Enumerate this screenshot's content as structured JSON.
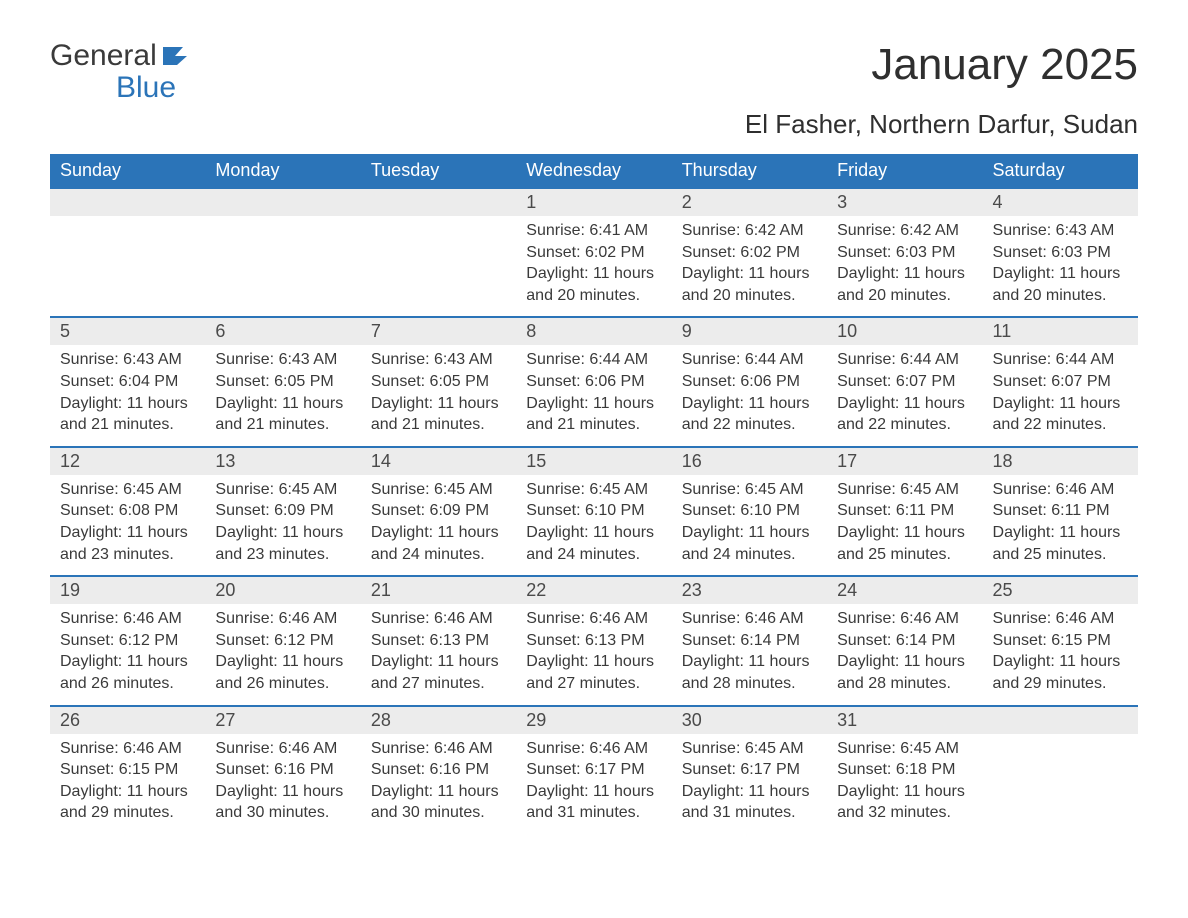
{
  "logo": {
    "word1": "General",
    "word2": "Blue"
  },
  "title": "January 2025",
  "location": "El Fasher, Northern Darfur, Sudan",
  "colors": {
    "header_bg": "#2b74b8",
    "header_text": "#ffffff",
    "daynum_bg": "#ececec",
    "text": "#3a3a3a",
    "rule": "#2b74b8",
    "logo_blue": "#2b74b8"
  },
  "typography": {
    "title_fontsize": 44,
    "location_fontsize": 26,
    "header_fontsize": 18,
    "body_fontsize": 16,
    "logo_fontsize": 30
  },
  "weekdays": [
    "Sunday",
    "Monday",
    "Tuesday",
    "Wednesday",
    "Thursday",
    "Friday",
    "Saturday"
  ],
  "labels": {
    "sunrise": "Sunrise:",
    "sunset": "Sunset:",
    "daylight": "Daylight:"
  },
  "weeks": [
    [
      null,
      null,
      null,
      {
        "n": "1",
        "sunrise": "6:41 AM",
        "sunset": "6:02 PM",
        "daylight": "11 hours and 20 minutes."
      },
      {
        "n": "2",
        "sunrise": "6:42 AM",
        "sunset": "6:02 PM",
        "daylight": "11 hours and 20 minutes."
      },
      {
        "n": "3",
        "sunrise": "6:42 AM",
        "sunset": "6:03 PM",
        "daylight": "11 hours and 20 minutes."
      },
      {
        "n": "4",
        "sunrise": "6:43 AM",
        "sunset": "6:03 PM",
        "daylight": "11 hours and 20 minutes."
      }
    ],
    [
      {
        "n": "5",
        "sunrise": "6:43 AM",
        "sunset": "6:04 PM",
        "daylight": "11 hours and 21 minutes."
      },
      {
        "n": "6",
        "sunrise": "6:43 AM",
        "sunset": "6:05 PM",
        "daylight": "11 hours and 21 minutes."
      },
      {
        "n": "7",
        "sunrise": "6:43 AM",
        "sunset": "6:05 PM",
        "daylight": "11 hours and 21 minutes."
      },
      {
        "n": "8",
        "sunrise": "6:44 AM",
        "sunset": "6:06 PM",
        "daylight": "11 hours and 21 minutes."
      },
      {
        "n": "9",
        "sunrise": "6:44 AM",
        "sunset": "6:06 PM",
        "daylight": "11 hours and 22 minutes."
      },
      {
        "n": "10",
        "sunrise": "6:44 AM",
        "sunset": "6:07 PM",
        "daylight": "11 hours and 22 minutes."
      },
      {
        "n": "11",
        "sunrise": "6:44 AM",
        "sunset": "6:07 PM",
        "daylight": "11 hours and 22 minutes."
      }
    ],
    [
      {
        "n": "12",
        "sunrise": "6:45 AM",
        "sunset": "6:08 PM",
        "daylight": "11 hours and 23 minutes."
      },
      {
        "n": "13",
        "sunrise": "6:45 AM",
        "sunset": "6:09 PM",
        "daylight": "11 hours and 23 minutes."
      },
      {
        "n": "14",
        "sunrise": "6:45 AM",
        "sunset": "6:09 PM",
        "daylight": "11 hours and 24 minutes."
      },
      {
        "n": "15",
        "sunrise": "6:45 AM",
        "sunset": "6:10 PM",
        "daylight": "11 hours and 24 minutes."
      },
      {
        "n": "16",
        "sunrise": "6:45 AM",
        "sunset": "6:10 PM",
        "daylight": "11 hours and 24 minutes."
      },
      {
        "n": "17",
        "sunrise": "6:45 AM",
        "sunset": "6:11 PM",
        "daylight": "11 hours and 25 minutes."
      },
      {
        "n": "18",
        "sunrise": "6:46 AM",
        "sunset": "6:11 PM",
        "daylight": "11 hours and 25 minutes."
      }
    ],
    [
      {
        "n": "19",
        "sunrise": "6:46 AM",
        "sunset": "6:12 PM",
        "daylight": "11 hours and 26 minutes."
      },
      {
        "n": "20",
        "sunrise": "6:46 AM",
        "sunset": "6:12 PM",
        "daylight": "11 hours and 26 minutes."
      },
      {
        "n": "21",
        "sunrise": "6:46 AM",
        "sunset": "6:13 PM",
        "daylight": "11 hours and 27 minutes."
      },
      {
        "n": "22",
        "sunrise": "6:46 AM",
        "sunset": "6:13 PM",
        "daylight": "11 hours and 27 minutes."
      },
      {
        "n": "23",
        "sunrise": "6:46 AM",
        "sunset": "6:14 PM",
        "daylight": "11 hours and 28 minutes."
      },
      {
        "n": "24",
        "sunrise": "6:46 AM",
        "sunset": "6:14 PM",
        "daylight": "11 hours and 28 minutes."
      },
      {
        "n": "25",
        "sunrise": "6:46 AM",
        "sunset": "6:15 PM",
        "daylight": "11 hours and 29 minutes."
      }
    ],
    [
      {
        "n": "26",
        "sunrise": "6:46 AM",
        "sunset": "6:15 PM",
        "daylight": "11 hours and 29 minutes."
      },
      {
        "n": "27",
        "sunrise": "6:46 AM",
        "sunset": "6:16 PM",
        "daylight": "11 hours and 30 minutes."
      },
      {
        "n": "28",
        "sunrise": "6:46 AM",
        "sunset": "6:16 PM",
        "daylight": "11 hours and 30 minutes."
      },
      {
        "n": "29",
        "sunrise": "6:46 AM",
        "sunset": "6:17 PM",
        "daylight": "11 hours and 31 minutes."
      },
      {
        "n": "30",
        "sunrise": "6:45 AM",
        "sunset": "6:17 PM",
        "daylight": "11 hours and 31 minutes."
      },
      {
        "n": "31",
        "sunrise": "6:45 AM",
        "sunset": "6:18 PM",
        "daylight": "11 hours and 32 minutes."
      },
      null
    ]
  ]
}
